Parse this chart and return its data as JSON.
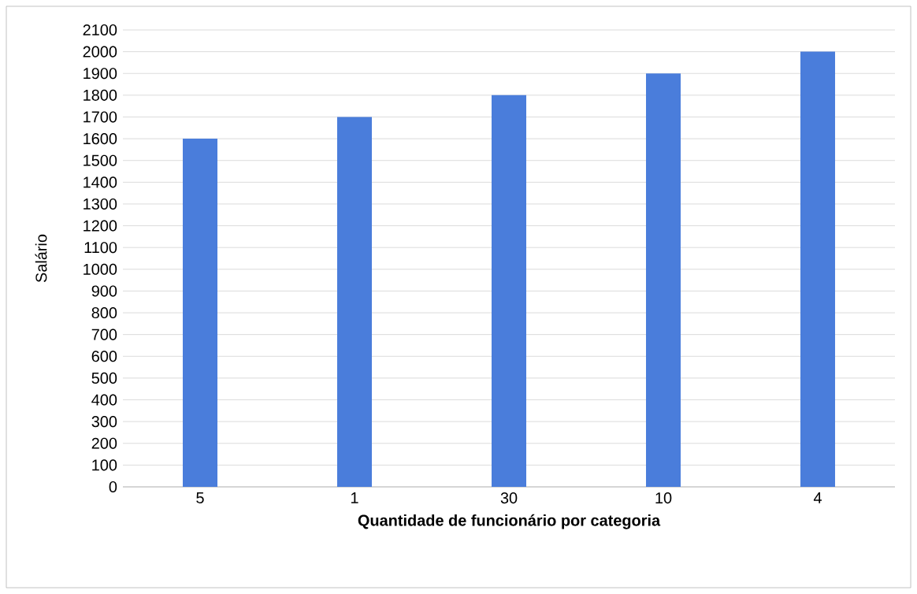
{
  "chart_data": {
    "type": "bar",
    "xlabel": "Quantidade de funcionário por categoria",
    "ylabel": "Salário",
    "categories": [
      "5",
      "1",
      "30",
      "10",
      "4"
    ],
    "values": [
      1600,
      1700,
      1800,
      1900,
      2000
    ],
    "color": "#4a7ddb",
    "ylim": [
      0,
      2100
    ],
    "yticks": [
      0,
      100,
      200,
      300,
      400,
      500,
      600,
      700,
      800,
      900,
      1000,
      1100,
      1200,
      1300,
      1400,
      1500,
      1600,
      1700,
      1800,
      1900,
      2000,
      2100
    ],
    "grid": "y"
  }
}
